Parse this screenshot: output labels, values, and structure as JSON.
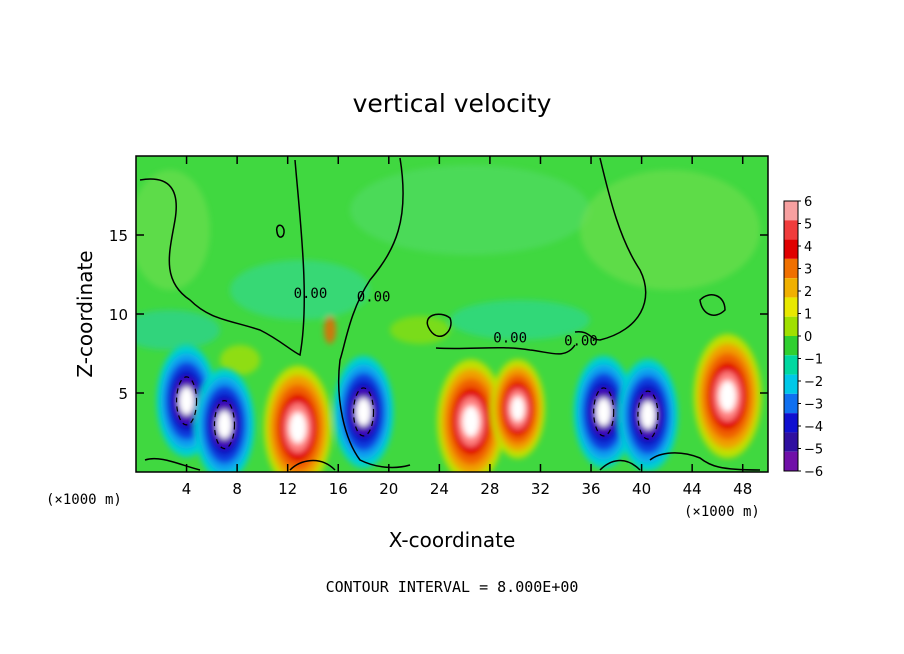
{
  "chart_data": {
    "type": "heatmap",
    "title": "vertical velocity",
    "xlabel": "X-coordinate",
    "ylabel": "Z-coordinate",
    "x_units": "(×1000 m)",
    "x_units_right": "(×1000 m)",
    "footer": "CONTOUR INTERVAL = 8.000E+00",
    "xlim": [
      0,
      50
    ],
    "ylim": [
      0,
      20
    ],
    "x_ticks": [
      4,
      8,
      12,
      16,
      20,
      24,
      28,
      32,
      36,
      40,
      44,
      48
    ],
    "x_tick_labels": [
      "4",
      "8",
      "12",
      "16",
      "20",
      "24",
      "28",
      "32",
      "36",
      "40",
      "44",
      "48"
    ],
    "y_ticks": [
      5,
      10,
      15
    ],
    "y_tick_labels": [
      "5",
      "10",
      "15"
    ],
    "contour_labels": [
      {
        "text": "0.00",
        "x": 18.8,
        "y": 10.8
      },
      {
        "text": "0.00",
        "x": 29.6,
        "y": 8.2
      },
      {
        "text": "0.00",
        "x": 13.8,
        "y": 11.0
      },
      {
        "text": "0.00",
        "x": 35.2,
        "y": 8.0
      }
    ],
    "colorbar": {
      "levels": [
        6,
        5,
        4,
        3,
        2,
        1,
        0,
        -1,
        -2,
        -3,
        -4,
        -5,
        -6
      ],
      "labels": [
        "6",
        "5",
        "4",
        "3",
        "2",
        "1",
        "0",
        "−1",
        "−2",
        "−3",
        "−4",
        "−5",
        "−6"
      ],
      "colors": [
        "#f7a0a0",
        "#f03c3c",
        "#e00000",
        "#f07000",
        "#f0b000",
        "#e8e800",
        "#a0e000",
        "#30d030",
        "#00d8a0",
        "#00c8e8",
        "#1070f0",
        "#1010d0",
        "#3010a0",
        "#7010a8"
      ]
    },
    "updrafts": [
      {
        "x": 12.8,
        "z": 2.8,
        "peak": 6
      },
      {
        "x": 26.5,
        "z": 3.2,
        "peak": 6
      },
      {
        "x": 30.2,
        "z": 4.0,
        "peak": 5
      },
      {
        "x": 46.8,
        "z": 4.8,
        "peak": 6
      }
    ],
    "downdrafts": [
      {
        "x": 4.0,
        "z": 4.5,
        "peak": -6
      },
      {
        "x": 7.0,
        "z": 3.0,
        "peak": -5
      },
      {
        "x": 18.0,
        "z": 3.8,
        "peak": -6
      },
      {
        "x": 37.0,
        "z": 3.8,
        "peak": -6
      },
      {
        "x": 40.5,
        "z": 3.6,
        "peak": -6
      }
    ]
  }
}
